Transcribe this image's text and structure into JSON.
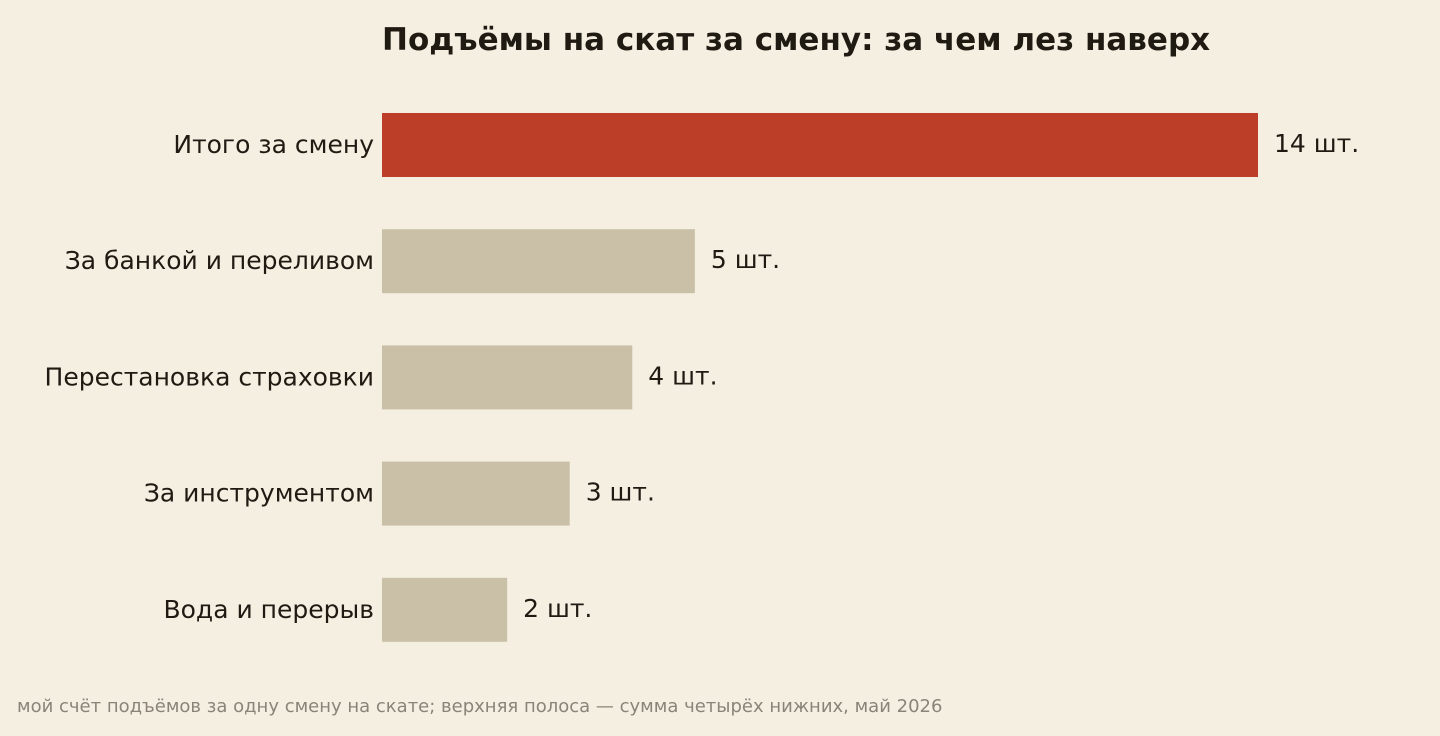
{
  "chart_data": {
    "type": "bar",
    "orientation": "horizontal",
    "title": "Подъёмы на скат за смену: за чем лез наверх",
    "note": "мой счёт подъёмов за одну смену на скате; верхняя полоса — сумма четырёх нижних, май 2026",
    "categories": [
      "Итого за смену",
      "За банкой и переливом",
      "Перестановка страховки",
      "За инструментом",
      "Вода и перерыв"
    ],
    "values": [
      14,
      5,
      4,
      3,
      2
    ],
    "value_labels": [
      "14 шт.",
      "5 шт.",
      "4 шт.",
      "3 шт.",
      "2 шт."
    ],
    "xlim": [
      0,
      14
    ],
    "grid": false,
    "legend": "none",
    "colors": {
      "highlight": "#bc3d28",
      "bar": "#c9c0a7",
      "background": "#f5efe2",
      "text": "#1f1a12",
      "note": "#8a8478"
    },
    "highlight_index": 0
  }
}
